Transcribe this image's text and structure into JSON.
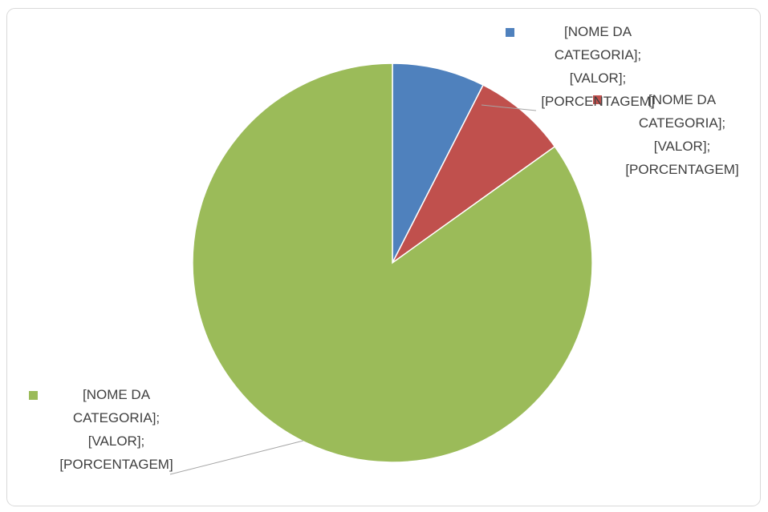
{
  "chart_data": {
    "type": "pie",
    "values": [
      7.5,
      7.6,
      84.9
    ],
    "colors": [
      "#4f81bd",
      "#c0504d",
      "#9bbb59"
    ],
    "value_labels": [
      "[NOME DA CATEGORIA]; [VALOR]; [PORCENTAGEM]",
      "[NOME DA CATEGORIA]; [VALOR]; [PORCENTAGEM]",
      "[NOME DA CATEGORIA]; [VALOR]; [PORCENTAGEM]"
    ]
  }
}
